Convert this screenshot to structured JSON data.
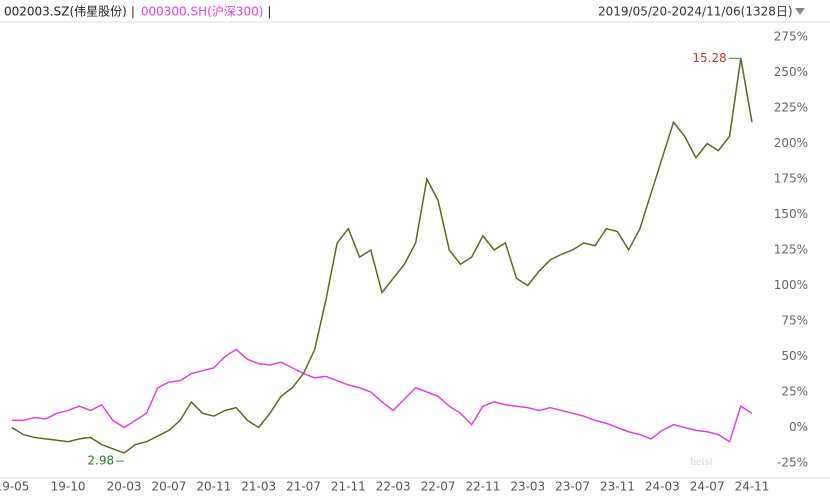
{
  "chart_data": {
    "type": "line",
    "legend_separator": "|",
    "date_range": "2019/05/20-2024/11/06(1328日)",
    "categories": [
      "19-05",
      null,
      null,
      null,
      null,
      "19-10",
      null,
      null,
      null,
      null,
      "20-03",
      null,
      null,
      null,
      "20-07",
      null,
      null,
      null,
      "20-11",
      null,
      null,
      null,
      "21-03",
      null,
      null,
      null,
      "21-07",
      null,
      null,
      null,
      "21-11",
      null,
      null,
      null,
      "22-03",
      null,
      null,
      null,
      "22-07",
      null,
      null,
      null,
      "22-11",
      null,
      null,
      null,
      "23-03",
      null,
      null,
      null,
      "23-07",
      null,
      null,
      null,
      "23-11",
      null,
      null,
      null,
      "24-03",
      null,
      null,
      null,
      "24-07",
      null,
      null,
      null,
      "24-11"
    ],
    "series": [
      {
        "name": "002003.SZ(伟星股份)",
        "color": "#5a6b1f",
        "values": [
          0,
          -5,
          -7,
          -8,
          -9,
          -10,
          -8,
          -7,
          -12,
          -15,
          -18,
          -12,
          -10,
          -6,
          -2,
          5,
          18,
          10,
          8,
          12,
          14,
          5,
          0,
          10,
          22,
          28,
          38,
          55,
          90,
          130,
          140,
          120,
          125,
          95,
          105,
          115,
          130,
          175,
          160,
          125,
          115,
          120,
          135,
          125,
          130,
          105,
          100,
          110,
          118,
          122,
          125,
          130,
          128,
          140,
          138,
          125,
          140,
          165,
          190,
          215,
          205,
          190,
          200,
          195,
          205,
          260,
          215
        ]
      },
      {
        "name": "000300.SH(沪深300)",
        "color": "#e040e0",
        "values": [
          5,
          5,
          7,
          6,
          10,
          12,
          15,
          12,
          16,
          5,
          0,
          5,
          10,
          28,
          32,
          33,
          38,
          40,
          42,
          50,
          55,
          48,
          45,
          44,
          46,
          42,
          38,
          35,
          36,
          33,
          30,
          28,
          25,
          18,
          12,
          20,
          28,
          25,
          22,
          15,
          10,
          2,
          15,
          18,
          16,
          15,
          14,
          12,
          14,
          12,
          10,
          8,
          5,
          3,
          0,
          -3,
          -5,
          -8,
          -2,
          2,
          0,
          -2,
          -3,
          -5,
          -10,
          15,
          10
        ]
      }
    ],
    "annotations": {
      "high": "15.28",
      "low": "2.98"
    },
    "ylim": [
      -25,
      275
    ],
    "yticks": [
      {
        "value": 275,
        "label": "275%"
      },
      {
        "value": 250,
        "label": "250%"
      },
      {
        "value": 225,
        "label": "225%"
      },
      {
        "value": 200,
        "label": "200%"
      },
      {
        "value": 175,
        "label": "175%"
      },
      {
        "value": 150,
        "label": "150%"
      },
      {
        "value": 125,
        "label": "125%"
      },
      {
        "value": 100,
        "label": "100%"
      },
      {
        "value": 75,
        "label": "75%"
      },
      {
        "value": 50,
        "label": "50%"
      },
      {
        "value": 25,
        "label": "25%"
      },
      {
        "value": 0,
        "label": "0%"
      },
      {
        "value": -25,
        "label": "-25%"
      }
    ],
    "grid": false,
    "watermark": "heisi"
  }
}
